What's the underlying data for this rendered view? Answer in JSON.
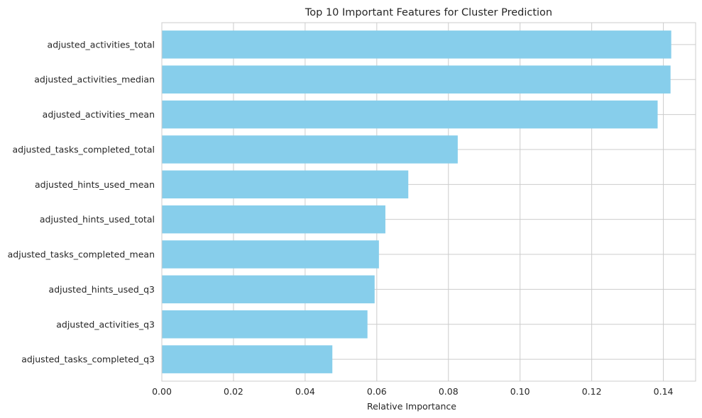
{
  "chart_data": {
    "type": "bar",
    "orientation": "horizontal",
    "title": "Top 10 Important Features for Cluster Prediction",
    "xlabel": "Relative Importance",
    "ylabel": "",
    "xlim": [
      0,
      0.149
    ],
    "xticks": [
      0.0,
      0.02,
      0.04,
      0.06,
      0.08,
      0.1,
      0.12,
      0.14
    ],
    "xtick_labels": [
      "0.00",
      "0.02",
      "0.04",
      "0.06",
      "0.08",
      "0.10",
      "0.12",
      "0.14"
    ],
    "categories": [
      "adjusted_activities_total",
      "adjusted_activities_median",
      "adjusted_activities_mean",
      "adjusted_tasks_completed_total",
      "adjusted_hints_used_mean",
      "adjusted_hints_used_total",
      "adjusted_tasks_completed_mean",
      "adjusted_hints_used_q3",
      "adjusted_activities_q3",
      "adjusted_tasks_completed_q3"
    ],
    "values": [
      0.1422,
      0.142,
      0.1384,
      0.0826,
      0.0688,
      0.0624,
      0.0606,
      0.0594,
      0.0574,
      0.0476
    ],
    "bar_color": "#87ceeb",
    "grid": true,
    "grid_color": "#cccccc"
  }
}
